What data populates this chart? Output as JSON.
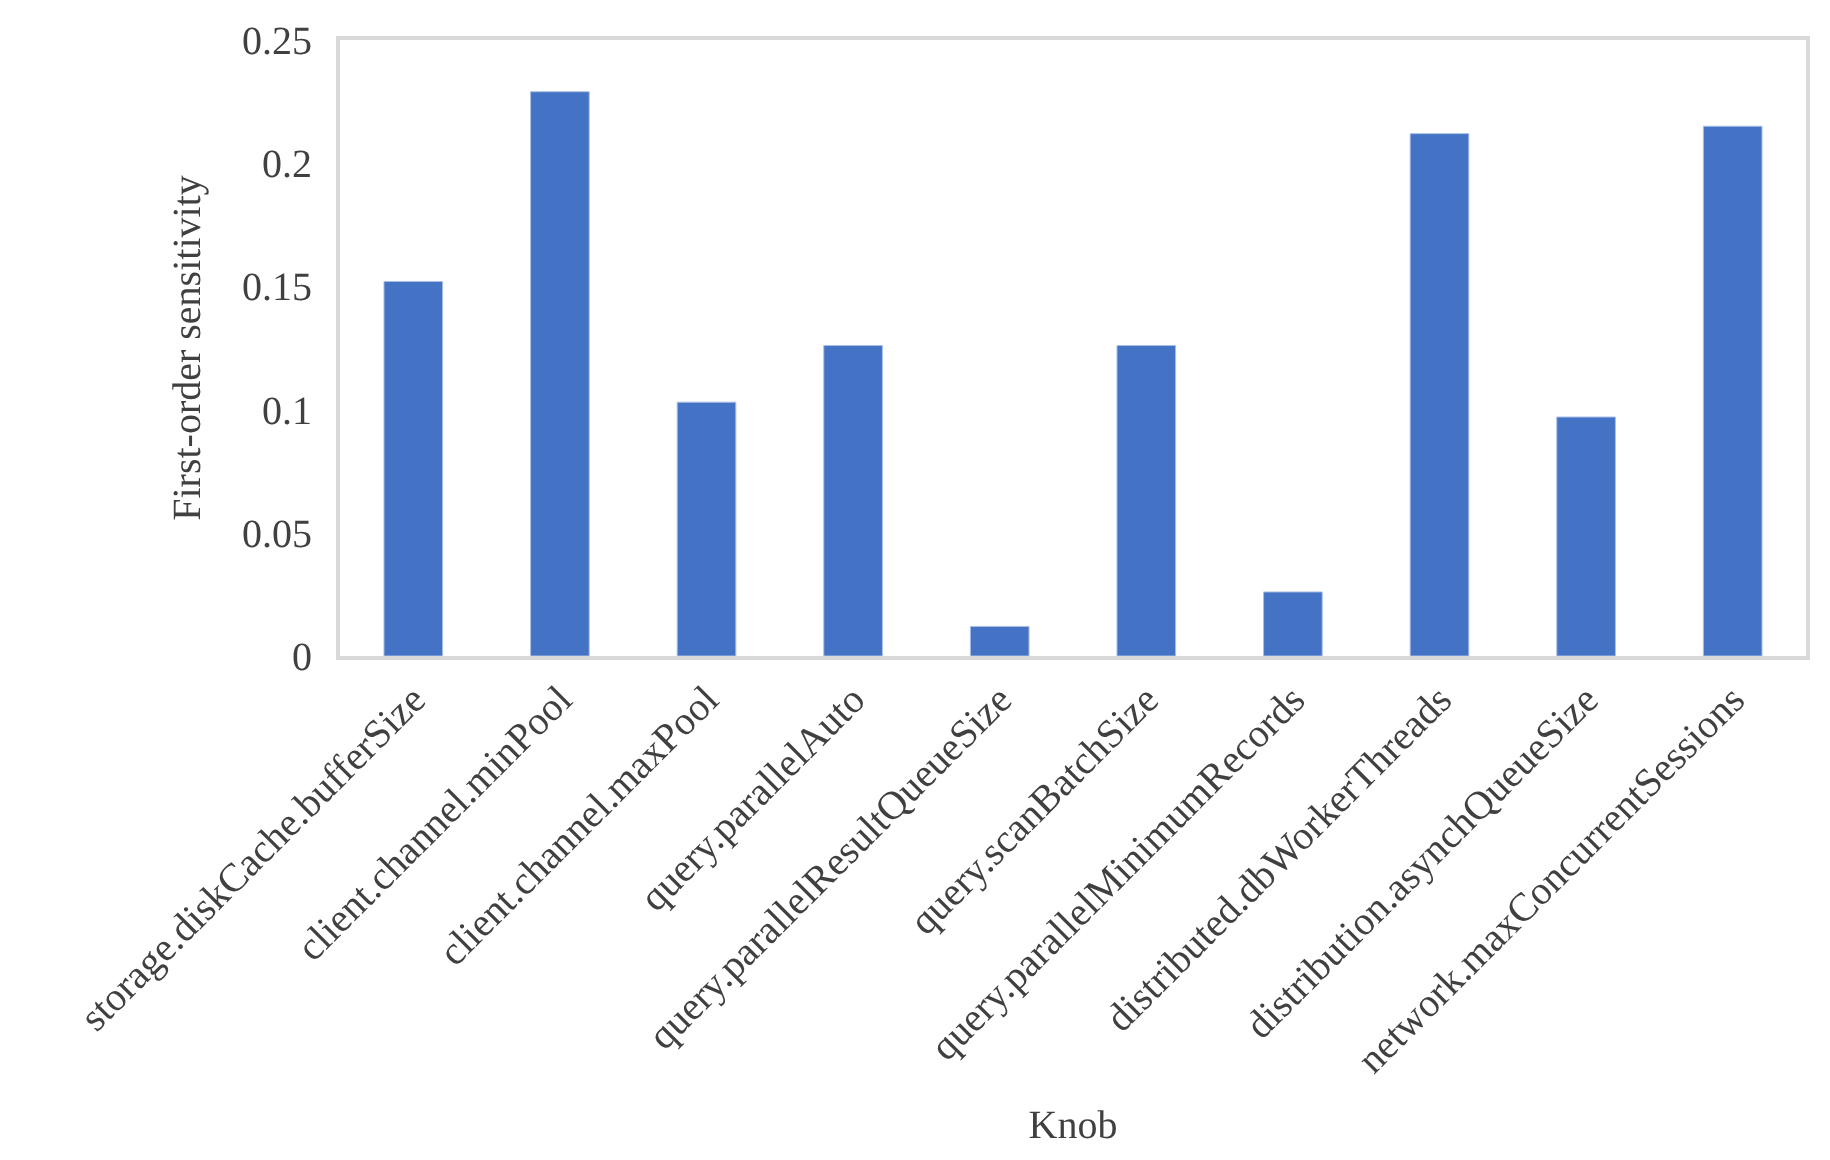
{
  "chart_data": {
    "type": "bar",
    "xlabel": "Knob",
    "ylabel": "First-order sensitivity",
    "categories": [
      "storage.diskCache.bufferSize",
      "client.channel.minPool",
      "client.channel.maxPool",
      "query.parallelAuto",
      "query.parallelResultQueueSize",
      "query.scanBatchSize",
      "query.parallelMinimumRecords",
      "distributed.dbWorkerThreads",
      "distribution.asynchQueueSize",
      "network.maxConcurrentSessions"
    ],
    "values": [
      0.152,
      0.229,
      0.103,
      0.126,
      0.012,
      0.126,
      0.026,
      0.212,
      0.097,
      0.215
    ],
    "color": "#4472c4",
    "ylim": [
      0,
      0.25
    ],
    "yticks": [
      0,
      0.05,
      0.1,
      0.15,
      0.2,
      0.25
    ]
  }
}
